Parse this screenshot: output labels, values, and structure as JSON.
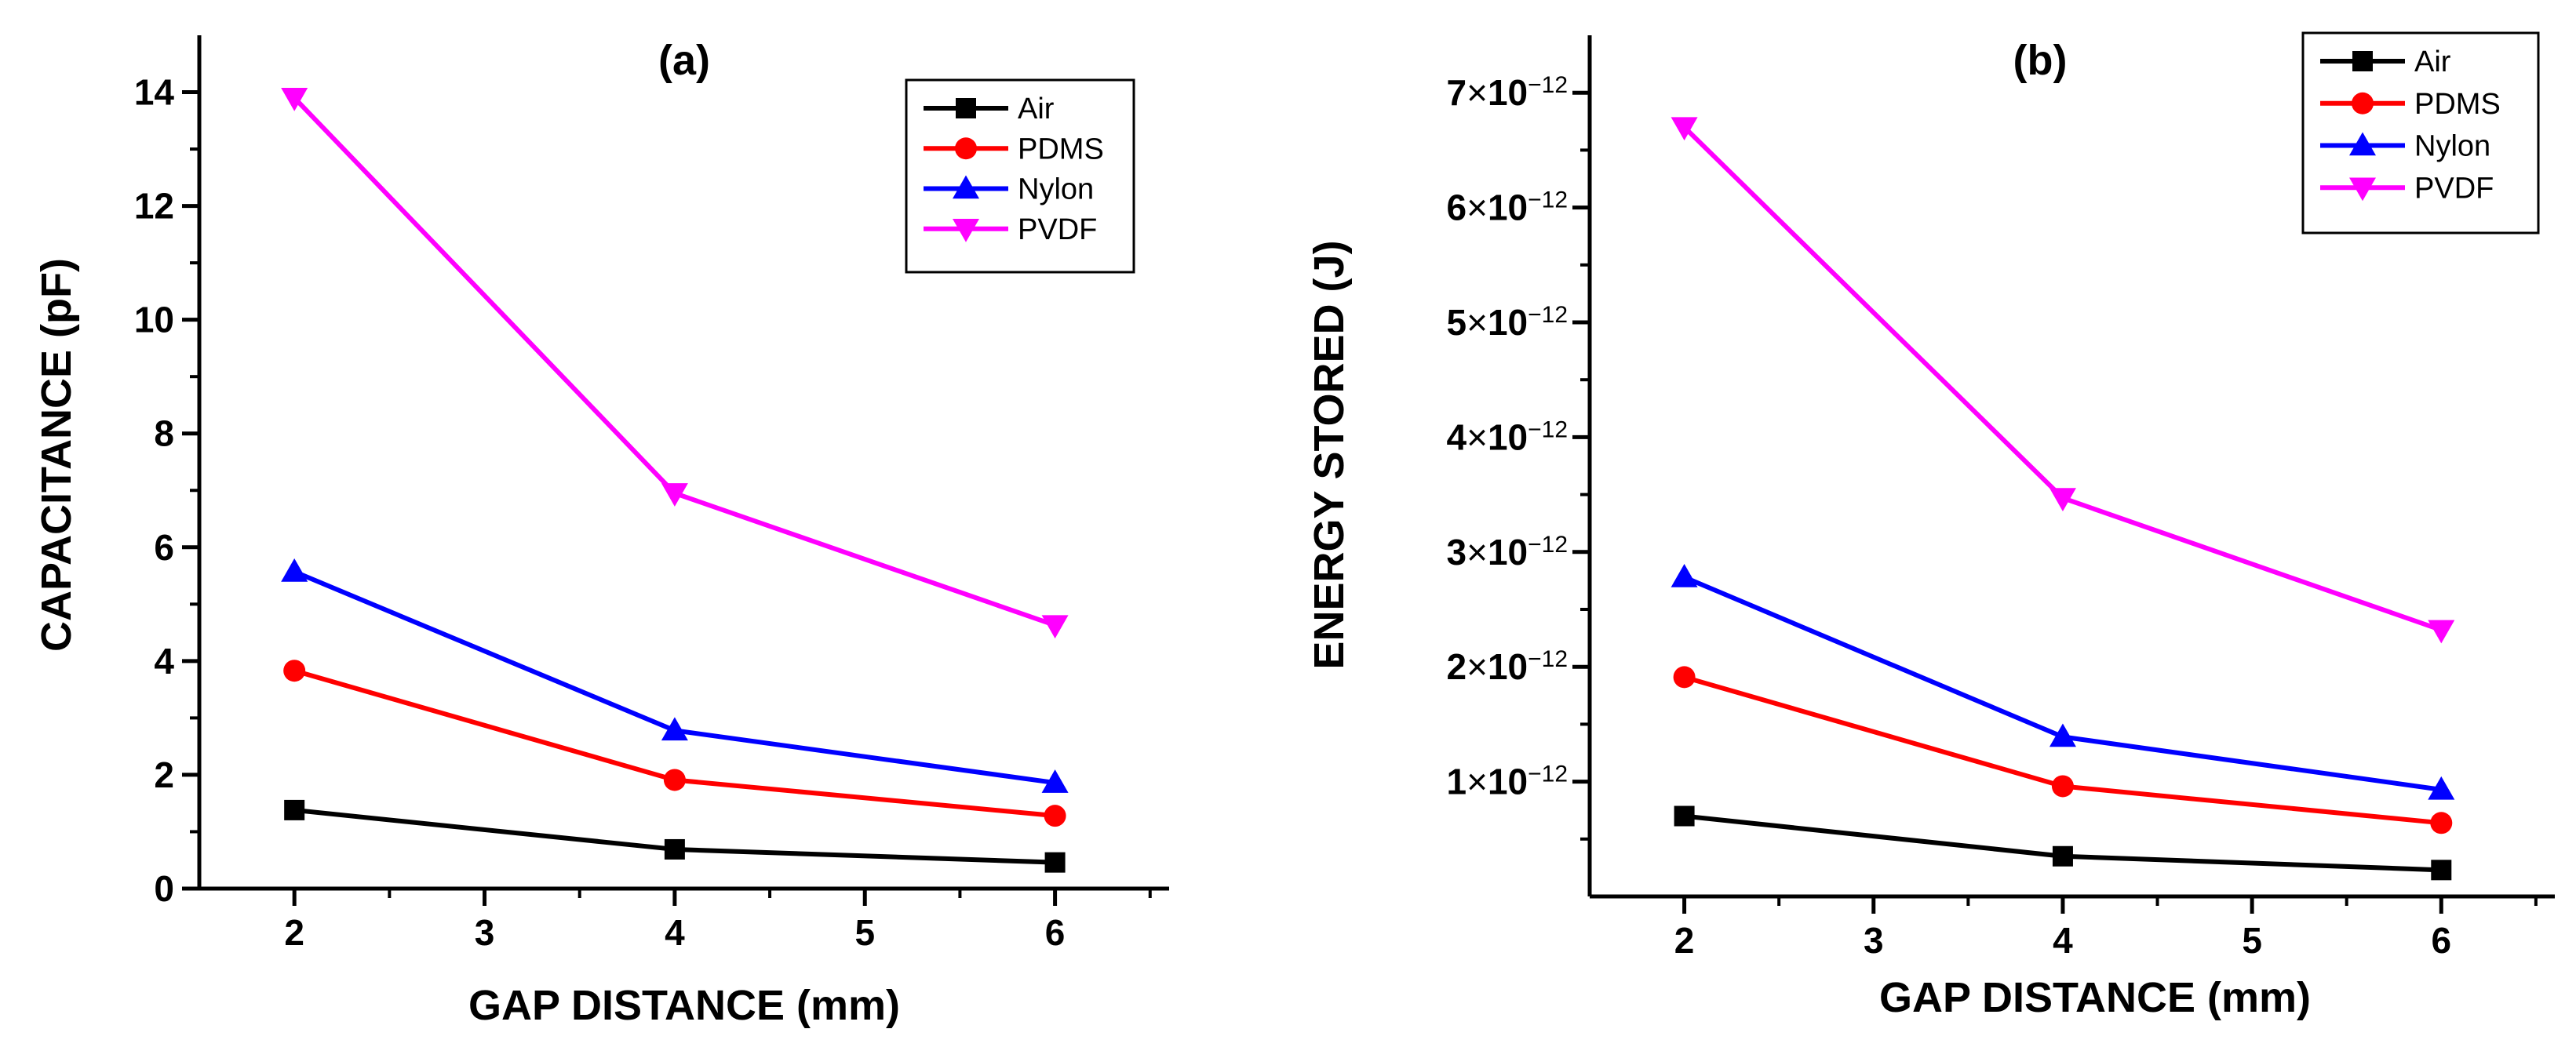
{
  "chart_data": [
    {
      "type": "line",
      "title": "(a)",
      "xlabel": "GAP DISTANCE (mm)",
      "ylabel": "CAPACITANCE (pF)",
      "x": [
        2,
        4,
        6
      ],
      "xlim": [
        1.5,
        6.6
      ],
      "ylim": [
        0,
        15
      ],
      "x_ticks": [
        2,
        3,
        4,
        5,
        6
      ],
      "y_ticks": [
        0,
        2,
        4,
        6,
        8,
        10,
        12,
        14
      ],
      "y_tick_labels": [
        "0",
        "2",
        "4",
        "6",
        "8",
        "10",
        "12",
        "14"
      ],
      "grid": false,
      "legend_position": "top-right",
      "series": [
        {
          "name": "Air",
          "values": [
            1.38,
            0.69,
            0.46
          ],
          "color": "#000000",
          "marker": "square"
        },
        {
          "name": "PDMS",
          "values": [
            3.83,
            1.91,
            1.28
          ],
          "color": "#ff0000",
          "marker": "circle"
        },
        {
          "name": "Nylon",
          "values": [
            5.57,
            2.78,
            1.86
          ],
          "color": "#0000ff",
          "marker": "triangle-up"
        },
        {
          "name": "PVDF",
          "values": [
            13.9,
            6.95,
            4.63
          ],
          "color": "#ff00ff",
          "marker": "triangle-down"
        }
      ]
    },
    {
      "type": "line",
      "title": "(b)",
      "xlabel": "GAP DISTANCE (mm)",
      "ylabel": "ENERGY STORED (J)",
      "x": [
        2,
        4,
        6
      ],
      "xlim": [
        1.5,
        6.6
      ],
      "ylim": [
        0,
        7.5e-12
      ],
      "x_ticks": [
        2,
        3,
        4,
        5,
        6
      ],
      "y_ticks": [
        1e-12,
        2e-12,
        3e-12,
        4e-12,
        5e-12,
        6e-12,
        7e-12
      ],
      "y_tick_labels": [
        {
          "mantissa": "1",
          "times": "×",
          "base": "10",
          "exponent": "−12"
        },
        {
          "mantissa": "2",
          "times": "×",
          "base": "10",
          "exponent": "−12"
        },
        {
          "mantissa": "3",
          "times": "×",
          "base": "10",
          "exponent": "−12"
        },
        {
          "mantissa": "4",
          "times": "×",
          "base": "10",
          "exponent": "−12"
        },
        {
          "mantissa": "5",
          "times": "×",
          "base": "10",
          "exponent": "−12"
        },
        {
          "mantissa": "6",
          "times": "×",
          "base": "10",
          "exponent": "−12"
        },
        {
          "mantissa": "7",
          "times": "×",
          "base": "10",
          "exponent": "−12"
        }
      ],
      "grid": false,
      "legend_position": "top-right",
      "series": [
        {
          "name": "Air",
          "values": [
            7e-13,
            3.5e-13,
            2.3e-13
          ],
          "color": "#000000",
          "marker": "square"
        },
        {
          "name": "PDMS",
          "values": [
            1.91e-12,
            9.6e-13,
            6.4e-13
          ],
          "color": "#ff0000",
          "marker": "circle"
        },
        {
          "name": "Nylon",
          "values": [
            2.78e-12,
            1.39e-12,
            9.3e-13
          ],
          "color": "#0000ff",
          "marker": "triangle-up"
        },
        {
          "name": "PVDF",
          "values": [
            6.7e-12,
            3.47e-12,
            2.32e-12
          ],
          "color": "#ff00ff",
          "marker": "triangle-down"
        }
      ]
    }
  ]
}
